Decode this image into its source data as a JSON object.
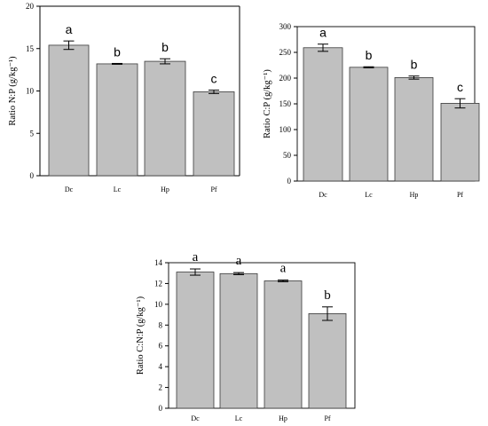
{
  "chart_data": [
    {
      "type": "bar",
      "categories": [
        "Dc",
        "Lc",
        "Hp",
        "Pf"
      ],
      "values": [
        15.4,
        13.2,
        13.5,
        9.9
      ],
      "errors": [
        0.5,
        0.05,
        0.3,
        0.2
      ],
      "letters": [
        "a",
        "b",
        "b",
        "c"
      ],
      "ylabel": "Ratio N:P (g/kg⁻¹)",
      "ylim": [
        0,
        20
      ],
      "yticks": [
        0,
        5,
        10,
        15,
        20
      ],
      "frame": "top-right"
    },
    {
      "type": "bar",
      "categories": [
        "Dc",
        "Lc",
        "Hp",
        "Pf"
      ],
      "values": [
        259,
        221,
        201,
        151
      ],
      "errors": [
        7,
        1,
        3,
        9
      ],
      "letters": [
        "a",
        "b",
        "b",
        "c"
      ],
      "ylabel": "Ratio C:P (g/kg⁻¹)",
      "ylim": [
        0,
        300
      ],
      "yticks": [
        0,
        50,
        100,
        150,
        200,
        250,
        300
      ],
      "frame": "full"
    },
    {
      "type": "bar",
      "categories": [
        "Dc",
        "Lc",
        "Hp",
        "Pf"
      ],
      "values": [
        13.1,
        12.95,
        12.25,
        9.1
      ],
      "errors": [
        0.3,
        0.1,
        0.08,
        0.65
      ],
      "letters": [
        "a",
        "a",
        "a",
        "b"
      ],
      "ylabel": "Ratio C:N:P (g/kg⁻¹)",
      "ylim": [
        0,
        14
      ],
      "yticks": [
        0,
        2,
        4,
        6,
        8,
        10,
        12,
        14
      ],
      "frame": "full"
    }
  ]
}
